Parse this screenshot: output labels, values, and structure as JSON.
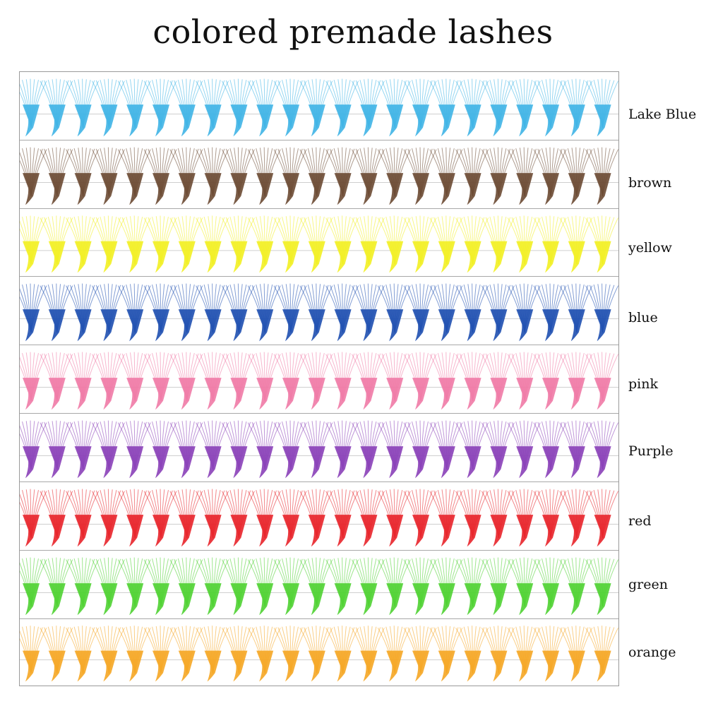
{
  "title": "colored premade lashes",
  "rows": [
    {
      "label": "Lake Blue",
      "color": "#3fb4e6"
    },
    {
      "label": "brown",
      "color": "#6b4a33"
    },
    {
      "label": "yellow",
      "color": "#f2ef22"
    },
    {
      "label": "blue",
      "color": "#1e4fb0"
    },
    {
      "label": "pink",
      "color": "#f07aa6"
    },
    {
      "label": "Purple",
      "color": "#8a40b8"
    },
    {
      "label": "red",
      "color": "#e8242a"
    },
    {
      "label": "green",
      "color": "#4fd132"
    },
    {
      "label": "orange",
      "color": "#f5a623"
    }
  ]
}
